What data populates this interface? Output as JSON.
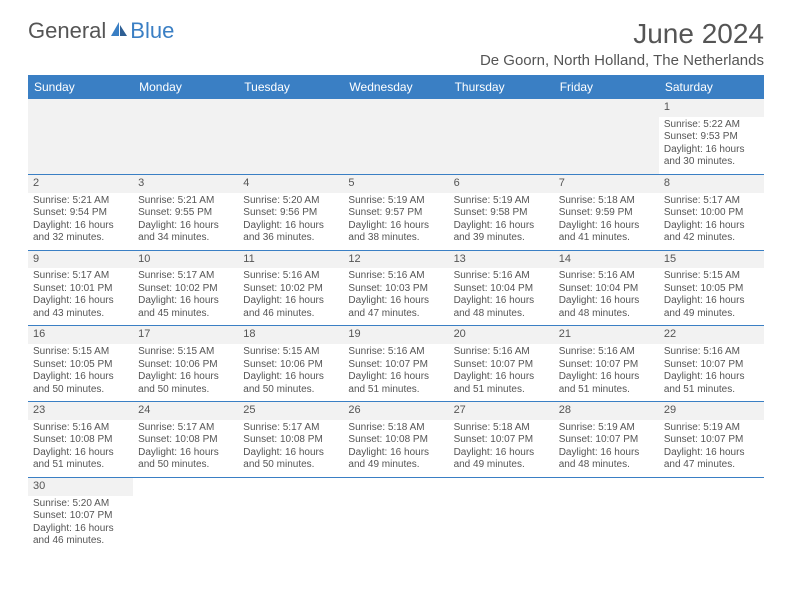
{
  "logo": {
    "text1": "General",
    "text2": "Blue"
  },
  "title": "June 2024",
  "location": "De Goorn, North Holland, The Netherlands",
  "colors": {
    "header_bg": "#3a7fc4",
    "header_text": "#ffffff",
    "text": "#555555",
    "empty_bg": "#f2f2f2",
    "border": "#3a7fc4"
  },
  "day_headers": [
    "Sunday",
    "Monday",
    "Tuesday",
    "Wednesday",
    "Thursday",
    "Friday",
    "Saturday"
  ],
  "weeks": [
    [
      {
        "blank": true
      },
      {
        "blank": true
      },
      {
        "blank": true
      },
      {
        "blank": true
      },
      {
        "blank": true
      },
      {
        "blank": true
      },
      {
        "day": "1",
        "sunrise": "Sunrise: 5:22 AM",
        "sunset": "Sunset: 9:53 PM",
        "daylight": "Daylight: 16 hours and 30 minutes."
      }
    ],
    [
      {
        "day": "2",
        "sunrise": "Sunrise: 5:21 AM",
        "sunset": "Sunset: 9:54 PM",
        "daylight": "Daylight: 16 hours and 32 minutes."
      },
      {
        "day": "3",
        "sunrise": "Sunrise: 5:21 AM",
        "sunset": "Sunset: 9:55 PM",
        "daylight": "Daylight: 16 hours and 34 minutes."
      },
      {
        "day": "4",
        "sunrise": "Sunrise: 5:20 AM",
        "sunset": "Sunset: 9:56 PM",
        "daylight": "Daylight: 16 hours and 36 minutes."
      },
      {
        "day": "5",
        "sunrise": "Sunrise: 5:19 AM",
        "sunset": "Sunset: 9:57 PM",
        "daylight": "Daylight: 16 hours and 38 minutes."
      },
      {
        "day": "6",
        "sunrise": "Sunrise: 5:19 AM",
        "sunset": "Sunset: 9:58 PM",
        "daylight": "Daylight: 16 hours and 39 minutes."
      },
      {
        "day": "7",
        "sunrise": "Sunrise: 5:18 AM",
        "sunset": "Sunset: 9:59 PM",
        "daylight": "Daylight: 16 hours and 41 minutes."
      },
      {
        "day": "8",
        "sunrise": "Sunrise: 5:17 AM",
        "sunset": "Sunset: 10:00 PM",
        "daylight": "Daylight: 16 hours and 42 minutes."
      }
    ],
    [
      {
        "day": "9",
        "sunrise": "Sunrise: 5:17 AM",
        "sunset": "Sunset: 10:01 PM",
        "daylight": "Daylight: 16 hours and 43 minutes."
      },
      {
        "day": "10",
        "sunrise": "Sunrise: 5:17 AM",
        "sunset": "Sunset: 10:02 PM",
        "daylight": "Daylight: 16 hours and 45 minutes."
      },
      {
        "day": "11",
        "sunrise": "Sunrise: 5:16 AM",
        "sunset": "Sunset: 10:02 PM",
        "daylight": "Daylight: 16 hours and 46 minutes."
      },
      {
        "day": "12",
        "sunrise": "Sunrise: 5:16 AM",
        "sunset": "Sunset: 10:03 PM",
        "daylight": "Daylight: 16 hours and 47 minutes."
      },
      {
        "day": "13",
        "sunrise": "Sunrise: 5:16 AM",
        "sunset": "Sunset: 10:04 PM",
        "daylight": "Daylight: 16 hours and 48 minutes."
      },
      {
        "day": "14",
        "sunrise": "Sunrise: 5:16 AM",
        "sunset": "Sunset: 10:04 PM",
        "daylight": "Daylight: 16 hours and 48 minutes."
      },
      {
        "day": "15",
        "sunrise": "Sunrise: 5:15 AM",
        "sunset": "Sunset: 10:05 PM",
        "daylight": "Daylight: 16 hours and 49 minutes."
      }
    ],
    [
      {
        "day": "16",
        "sunrise": "Sunrise: 5:15 AM",
        "sunset": "Sunset: 10:05 PM",
        "daylight": "Daylight: 16 hours and 50 minutes."
      },
      {
        "day": "17",
        "sunrise": "Sunrise: 5:15 AM",
        "sunset": "Sunset: 10:06 PM",
        "daylight": "Daylight: 16 hours and 50 minutes."
      },
      {
        "day": "18",
        "sunrise": "Sunrise: 5:15 AM",
        "sunset": "Sunset: 10:06 PM",
        "daylight": "Daylight: 16 hours and 50 minutes."
      },
      {
        "day": "19",
        "sunrise": "Sunrise: 5:16 AM",
        "sunset": "Sunset: 10:07 PM",
        "daylight": "Daylight: 16 hours and 51 minutes."
      },
      {
        "day": "20",
        "sunrise": "Sunrise: 5:16 AM",
        "sunset": "Sunset: 10:07 PM",
        "daylight": "Daylight: 16 hours and 51 minutes."
      },
      {
        "day": "21",
        "sunrise": "Sunrise: 5:16 AM",
        "sunset": "Sunset: 10:07 PM",
        "daylight": "Daylight: 16 hours and 51 minutes."
      },
      {
        "day": "22",
        "sunrise": "Sunrise: 5:16 AM",
        "sunset": "Sunset: 10:07 PM",
        "daylight": "Daylight: 16 hours and 51 minutes."
      }
    ],
    [
      {
        "day": "23",
        "sunrise": "Sunrise: 5:16 AM",
        "sunset": "Sunset: 10:08 PM",
        "daylight": "Daylight: 16 hours and 51 minutes."
      },
      {
        "day": "24",
        "sunrise": "Sunrise: 5:17 AM",
        "sunset": "Sunset: 10:08 PM",
        "daylight": "Daylight: 16 hours and 50 minutes."
      },
      {
        "day": "25",
        "sunrise": "Sunrise: 5:17 AM",
        "sunset": "Sunset: 10:08 PM",
        "daylight": "Daylight: 16 hours and 50 minutes."
      },
      {
        "day": "26",
        "sunrise": "Sunrise: 5:18 AM",
        "sunset": "Sunset: 10:08 PM",
        "daylight": "Daylight: 16 hours and 49 minutes."
      },
      {
        "day": "27",
        "sunrise": "Sunrise: 5:18 AM",
        "sunset": "Sunset: 10:07 PM",
        "daylight": "Daylight: 16 hours and 49 minutes."
      },
      {
        "day": "28",
        "sunrise": "Sunrise: 5:19 AM",
        "sunset": "Sunset: 10:07 PM",
        "daylight": "Daylight: 16 hours and 48 minutes."
      },
      {
        "day": "29",
        "sunrise": "Sunrise: 5:19 AM",
        "sunset": "Sunset: 10:07 PM",
        "daylight": "Daylight: 16 hours and 47 minutes."
      }
    ],
    [
      {
        "day": "30",
        "sunrise": "Sunrise: 5:20 AM",
        "sunset": "Sunset: 10:07 PM",
        "daylight": "Daylight: 16 hours and 46 minutes."
      },
      {
        "blank": true
      },
      {
        "blank": true
      },
      {
        "blank": true
      },
      {
        "blank": true
      },
      {
        "blank": true
      },
      {
        "blank": true
      }
    ]
  ]
}
